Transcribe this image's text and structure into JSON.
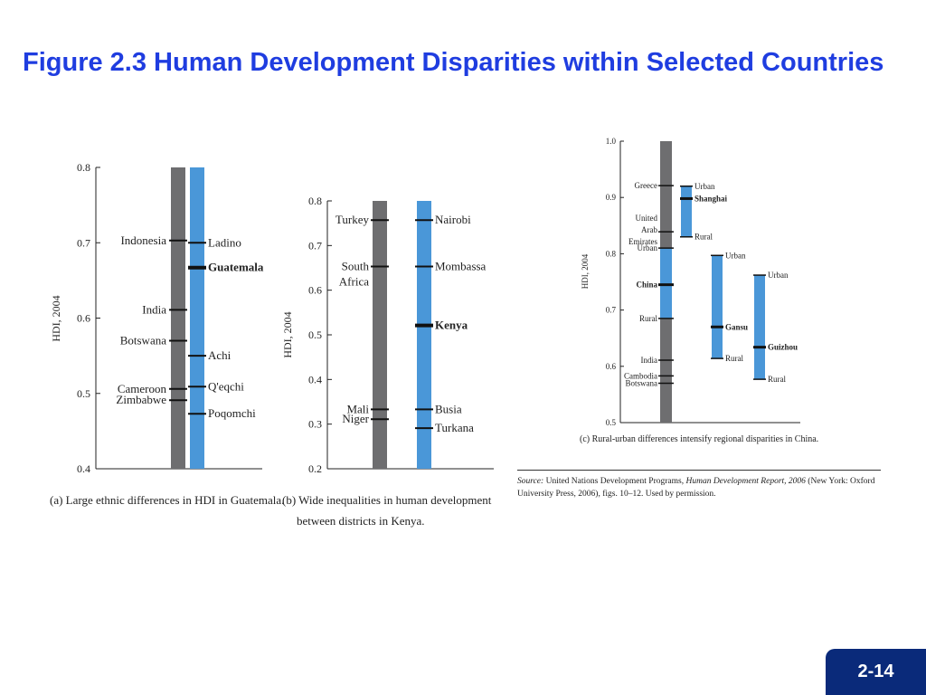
{
  "slide": {
    "title": "Figure 2.3 Human Development Disparities within Selected Countries",
    "page_number": "2-14",
    "source_label": "Source:",
    "source_text": "United Nations Development Programs,",
    "source_italic": "Human Development Report, 2006",
    "source_rest": "(New York: Oxford University Press, 2006), figs. 10–12. Used by permission."
  },
  "colors": {
    "grey_bar": "#6e6e70",
    "blue_bar": "#4a97d8",
    "title": "#1f3de0",
    "badge": "#0a2a7a"
  },
  "chart_data": [
    {
      "type": "other",
      "caption": "(a) Large ethnic differences in HDI in Guatemala.",
      "ylabel": "HDI, 2004",
      "ylim": [
        0.4,
        0.8
      ],
      "yticks": [
        "0.4",
        "0.5",
        "0.6",
        "0.7",
        "0.8"
      ],
      "series": [
        {
          "color": "grey",
          "points": [
            {
              "label": "Indonesia",
              "value": 0.703
            },
            {
              "label": "India",
              "value": 0.611
            },
            {
              "label": "Botswana",
              "value": 0.57
            },
            {
              "label": "Cameroon",
              "value": 0.506
            },
            {
              "label": "Zimbabwe",
              "value": 0.491
            }
          ]
        },
        {
          "color": "blue",
          "points": [
            {
              "label": "Ladino",
              "value": 0.7
            },
            {
              "label": "Guatemala",
              "value": 0.667,
              "bold": true
            },
            {
              "label": "Achi",
              "value": 0.55
            },
            {
              "label": "Q'eqchi",
              "value": 0.509
            },
            {
              "label": "Poqomchi",
              "value": 0.473
            }
          ]
        }
      ]
    },
    {
      "type": "other",
      "caption": "(b) Wide inequalities in human development between districts in Kenya.",
      "ylabel": "HDI, 2004",
      "ylim": [
        0.2,
        0.8
      ],
      "yticks": [
        "0.2",
        "0.3",
        "0.4",
        "0.5",
        "0.6",
        "0.7",
        "0.8"
      ],
      "series": [
        {
          "color": "grey",
          "points": [
            {
              "label": "Turkey",
              "value": 0.757
            },
            {
              "label": "South Africa",
              "value": 0.653
            },
            {
              "label": "Mali",
              "value": 0.333
            },
            {
              "label": "Niger",
              "value": 0.311
            }
          ]
        },
        {
          "color": "blue",
          "points": [
            {
              "label": "Nairobi",
              "value": 0.757
            },
            {
              "label": "Mombassa",
              "value": 0.653
            },
            {
              "label": "Kenya",
              "value": 0.521,
              "bold": true
            },
            {
              "label": "Busia",
              "value": 0.333
            },
            {
              "label": "Turkana",
              "value": 0.291
            }
          ]
        }
      ]
    },
    {
      "type": "other",
      "caption": "(c) Rural-urban differences intensify regional disparities in China.",
      "ylabel": "HDI, 2004",
      "ylim": [
        0.5,
        1.0
      ],
      "yticks": [
        "0.5",
        "0.6",
        "0.7",
        "0.8",
        "0.9",
        "1.0"
      ],
      "countries": [
        {
          "label": "Greece",
          "value": 0.921
        },
        {
          "label": "United Arab Emirates",
          "value": 0.839
        },
        {
          "label": "China",
          "value": 0.745,
          "bold": true
        },
        {
          "label": "India",
          "value": 0.611
        },
        {
          "label": "Cambodia",
          "value": 0.583
        },
        {
          "label": "Botswana",
          "value": 0.57
        }
      ],
      "china_range": {
        "urban_label": "Urban",
        "urban": 0.81,
        "rural_label": "Rural",
        "rural": 0.685
      },
      "regions": [
        {
          "name": "Shanghai",
          "urban": 0.92,
          "rural": 0.83,
          "value": 0.898
        },
        {
          "name": "Gansu",
          "urban": 0.797,
          "rural": 0.614,
          "value": 0.67
        },
        {
          "name": "Guizhou",
          "urban": 0.762,
          "rural": 0.577,
          "value": 0.634
        }
      ],
      "urban_label": "Urban",
      "rural_label": "Rural"
    }
  ]
}
